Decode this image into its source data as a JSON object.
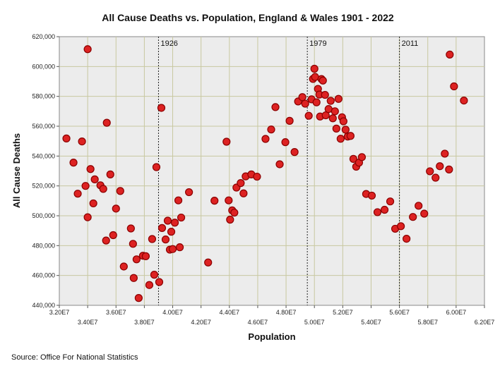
{
  "chart_data": {
    "type": "scatter",
    "title": "All Cause Deaths vs. Population, England & Wales 1901 - 2022",
    "xlabel": "Population",
    "ylabel": "All Cause Deaths",
    "xlim": [
      32000000,
      62000000
    ],
    "ylim": [
      440000,
      620000
    ],
    "x_ticks_top_row": [
      "3.20E7",
      "3.60E7",
      "4.00E7",
      "4.40E7",
      "4.80E7",
      "5.20E7",
      "5.60E7",
      "6.00E7"
    ],
    "x_ticks_bottom_row": [
      "3.40E7",
      "3.80E7",
      "4.20E7",
      "4.60E7",
      "5.00E7",
      "5.40E7",
      "5.80E7",
      "6.20E7"
    ],
    "y_ticks": [
      "440,000",
      "460,000",
      "480,000",
      "500,000",
      "520,000",
      "540,000",
      "560,000",
      "580,000",
      "600,000",
      "620,000"
    ],
    "grid": true,
    "marker_color": "#dd2222",
    "marker_edge_color": "#8b0000",
    "annotations": [
      {
        "label": "1926",
        "x": 39000000
      },
      {
        "label": "1979",
        "x": 49500000
      },
      {
        "label": "2011",
        "x": 56000000
      }
    ],
    "source": "Source: Office For National Statistics",
    "points": [
      [
        32.5,
        551800
      ],
      [
        33.0,
        535600
      ],
      [
        33.3,
        514800
      ],
      [
        33.6,
        549800
      ],
      [
        33.85,
        520000
      ],
      [
        34.0,
        499000
      ],
      [
        34.2,
        531300
      ],
      [
        34.4,
        508300
      ],
      [
        34.5,
        524400
      ],
      [
        34.9,
        520400
      ],
      [
        35.1,
        518000
      ],
      [
        35.3,
        483400
      ],
      [
        35.6,
        527700
      ],
      [
        35.8,
        487000
      ],
      [
        36.0,
        504800
      ],
      [
        36.3,
        516600
      ],
      [
        36.55,
        466000
      ],
      [
        37.05,
        491500
      ],
      [
        37.2,
        481200
      ],
      [
        37.25,
        458300
      ],
      [
        37.45,
        470800
      ],
      [
        37.6,
        444900
      ],
      [
        37.9,
        473200
      ],
      [
        38.1,
        472900
      ],
      [
        38.35,
        453600
      ],
      [
        38.55,
        484400
      ],
      [
        38.7,
        460500
      ],
      [
        38.85,
        532600
      ],
      [
        39.05,
        455600
      ],
      [
        39.2,
        572300
      ],
      [
        39.25,
        491800
      ],
      [
        39.5,
        484100
      ],
      [
        39.65,
        496700
      ],
      [
        39.8,
        477300
      ],
      [
        39.9,
        489300
      ],
      [
        40.0,
        477700
      ],
      [
        40.15,
        495400
      ],
      [
        40.4,
        510300
      ],
      [
        40.5,
        478900
      ],
      [
        40.6,
        498800
      ],
      [
        41.15,
        515800
      ],
      [
        42.5,
        468700
      ],
      [
        42.95,
        510100
      ],
      [
        43.8,
        549600
      ],
      [
        43.95,
        510300
      ],
      [
        44.05,
        497400
      ],
      [
        44.2,
        503600
      ],
      [
        44.35,
        502100
      ],
      [
        44.5,
        518900
      ],
      [
        44.8,
        521900
      ],
      [
        45.0,
        515000
      ],
      [
        45.15,
        526400
      ],
      [
        45.55,
        527700
      ],
      [
        45.95,
        526200
      ],
      [
        46.55,
        551500
      ],
      [
        46.95,
        557800
      ],
      [
        47.25,
        572800
      ],
      [
        47.55,
        534500
      ],
      [
        47.95,
        549300
      ],
      [
        48.25,
        563600
      ],
      [
        48.6,
        542700
      ],
      [
        48.85,
        576600
      ],
      [
        49.15,
        579500
      ],
      [
        49.35,
        575100
      ],
      [
        49.6,
        567000
      ],
      [
        49.8,
        578000
      ],
      [
        49.9,
        591700
      ],
      [
        50.0,
        598500
      ],
      [
        50.05,
        593000
      ],
      [
        50.15,
        576000
      ],
      [
        50.25,
        585000
      ],
      [
        50.35,
        581200
      ],
      [
        50.4,
        566500
      ],
      [
        50.5,
        591600
      ],
      [
        50.6,
        590600
      ],
      [
        50.75,
        581000
      ],
      [
        50.8,
        567300
      ],
      [
        51.0,
        571500
      ],
      [
        51.15,
        577000
      ],
      [
        51.3,
        565300
      ],
      [
        51.45,
        570000
      ],
      [
        51.55,
        558400
      ],
      [
        51.7,
        578300
      ],
      [
        51.85,
        551600
      ],
      [
        51.95,
        566000
      ],
      [
        52.05,
        563300
      ],
      [
        52.2,
        557700
      ],
      [
        52.35,
        553100
      ],
      [
        52.55,
        553500
      ],
      [
        52.75,
        538100
      ],
      [
        52.95,
        532900
      ],
      [
        53.15,
        535600
      ],
      [
        53.35,
        539300
      ],
      [
        53.65,
        514600
      ],
      [
        54.05,
        513500
      ],
      [
        54.45,
        502400
      ],
      [
        54.95,
        504000
      ],
      [
        55.35,
        509600
      ],
      [
        55.7,
        491300
      ],
      [
        56.1,
        493000
      ],
      [
        56.5,
        484600
      ],
      [
        56.95,
        499200
      ],
      [
        57.35,
        506700
      ],
      [
        57.75,
        501400
      ],
      [
        58.15,
        529800
      ],
      [
        58.55,
        525500
      ],
      [
        58.85,
        533200
      ],
      [
        59.2,
        541600
      ],
      [
        59.5,
        531000
      ],
      [
        59.55,
        608000
      ],
      [
        59.85,
        586700
      ],
      [
        60.55,
        577200
      ],
      [
        34.0,
        611600
      ],
      [
        35.35,
        562300
      ]
    ]
  }
}
